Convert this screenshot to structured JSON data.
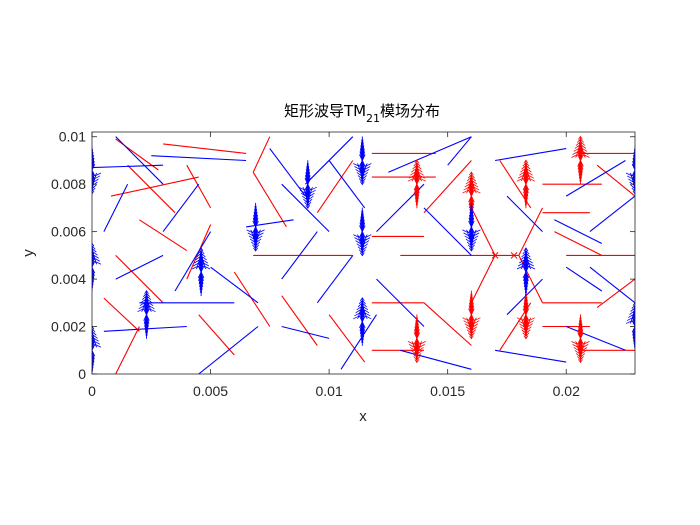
{
  "chart_data": {
    "type": "quiver",
    "title": "矩形波导TM",
    "title_subscript": "21",
    "title_suffix": "模场分布",
    "xlabel": "x",
    "ylabel": "y",
    "xlim": [
      0,
      0.0229
    ],
    "ylim": [
      0,
      0.0102
    ],
    "xticks": [
      {
        "value": 0,
        "label": "0"
      },
      {
        "value": 0.005,
        "label": "0.005"
      },
      {
        "value": 0.01,
        "label": "0.01"
      },
      {
        "value": 0.015,
        "label": "0.015"
      },
      {
        "value": 0.02,
        "label": "0.02"
      }
    ],
    "yticks": [
      {
        "value": 0,
        "label": "0"
      },
      {
        "value": 0.002,
        "label": "0.002"
      },
      {
        "value": 0.004,
        "label": "0.004"
      },
      {
        "value": 0.006,
        "label": "0.006"
      },
      {
        "value": 0.008,
        "label": "0.008"
      },
      {
        "value": 0.01,
        "label": "0.01"
      }
    ],
    "grid": false,
    "series": [
      {
        "color": "#ff0000",
        "segments": [
          [
            0.001,
            0.0099,
            0.0028,
            0.0086
          ],
          [
            0.0015,
            0.0088,
            0.0035,
            0.0068
          ],
          [
            0.0008,
            0.0075,
            0.0045,
            0.0083
          ],
          [
            0.003,
            0.0097,
            0.0065,
            0.0093
          ],
          [
            0.004,
            0.0088,
            0.005,
            0.007
          ],
          [
            0.002,
            0.0065,
            0.004,
            0.0052
          ],
          [
            0.005,
            0.0063,
            0.004,
            0.004
          ],
          [
            0.001,
            0.005,
            0.003,
            0.003
          ],
          [
            0.0005,
            0.0032,
            0.002,
            0.0018
          ],
          [
            0.002,
            0.002,
            0.001,
            0.0
          ],
          [
            0.0045,
            0.0025,
            0.006,
            0.0008
          ],
          [
            0.006,
            0.0043,
            0.0075,
            0.002
          ],
          [
            0.0068,
            0.005,
            0.011,
            0.005
          ],
          [
            0.0075,
            0.01,
            0.0068,
            0.0085
          ],
          [
            0.0068,
            0.0085,
            0.0082,
            0.0062
          ],
          [
            0.008,
            0.0033,
            0.0095,
            0.0012
          ],
          [
            0.01,
            0.0025,
            0.0115,
            0.0005
          ],
          [
            0.0095,
            0.0068,
            0.011,
            0.009
          ],
          [
            0.0118,
            0.0093,
            0.0145,
            0.0093
          ],
          [
            0.0118,
            0.0083,
            0.0145,
            0.0083
          ],
          [
            0.0118,
            0.0058,
            0.014,
            0.0058
          ],
          [
            0.0118,
            0.003,
            0.014,
            0.003
          ],
          [
            0.0118,
            0.001,
            0.014,
            0.001
          ],
          [
            0.013,
            0.005,
            0.018,
            0.005
          ],
          [
            0.014,
            0.0068,
            0.016,
            0.009
          ],
          [
            0.014,
            0.003,
            0.016,
            0.0012
          ],
          [
            0.016,
            0.003,
            0.017,
            0.005
          ],
          [
            0.016,
            0.007,
            0.017,
            0.005
          ],
          [
            0.018,
            0.005,
            0.019,
            0.003
          ],
          [
            0.018,
            0.005,
            0.019,
            0.007
          ],
          [
            0.0172,
            0.009,
            0.0185,
            0.007
          ],
          [
            0.0172,
            0.001,
            0.0185,
            0.003
          ],
          [
            0.019,
            0.008,
            0.0215,
            0.008
          ],
          [
            0.019,
            0.0068,
            0.021,
            0.0068
          ],
          [
            0.019,
            0.003,
            0.0215,
            0.003
          ],
          [
            0.019,
            0.002,
            0.021,
            0.002
          ],
          [
            0.0205,
            0.0093,
            0.0229,
            0.0093
          ],
          [
            0.02,
            0.005,
            0.0229,
            0.005
          ],
          [
            0.0205,
            0.001,
            0.0229,
            0.001
          ],
          [
            0.0213,
            0.0088,
            0.0229,
            0.0075
          ],
          [
            0.0213,
            0.0028,
            0.0229,
            0.004
          ],
          [
            0.0195,
            0.006,
            0.0215,
            0.005
          ]
        ]
      },
      {
        "color": "#0000ff",
        "segments": [
          [
            0.0,
            0.0087,
            0.003,
            0.0088
          ],
          [
            0.001,
            0.01,
            0.003,
            0.008
          ],
          [
            0.0015,
            0.008,
            0.0005,
            0.006
          ],
          [
            0.0025,
            0.0092,
            0.0065,
            0.009
          ],
          [
            0.003,
            0.006,
            0.0045,
            0.008
          ],
          [
            0.0035,
            0.0035,
            0.005,
            0.006
          ],
          [
            0.002,
            0.003,
            0.006,
            0.003
          ],
          [
            0.0005,
            0.0018,
            0.004,
            0.002
          ],
          [
            0.001,
            0.004,
            0.003,
            0.005
          ],
          [
            0.0045,
            0.0,
            0.007,
            0.002
          ],
          [
            0.005,
            0.0045,
            0.007,
            0.003
          ],
          [
            0.0065,
            0.0062,
            0.0085,
            0.0065
          ],
          [
            0.0075,
            0.0095,
            0.009,
            0.0075
          ],
          [
            0.008,
            0.008,
            0.01,
            0.006
          ],
          [
            0.008,
            0.004,
            0.0095,
            0.006
          ],
          [
            0.008,
            0.002,
            0.01,
            0.0015
          ],
          [
            0.0095,
            0.003,
            0.011,
            0.005
          ],
          [
            0.01,
            0.009,
            0.0115,
            0.007
          ],
          [
            0.0105,
            0.0002,
            0.012,
            0.0025
          ],
          [
            0.012,
            0.006,
            0.014,
            0.008
          ],
          [
            0.012,
            0.004,
            0.014,
            0.002
          ],
          [
            0.0125,
            0.0085,
            0.016,
            0.01
          ],
          [
            0.013,
            0.001,
            0.016,
            0.0002
          ],
          [
            0.014,
            0.007,
            0.016,
            0.005
          ],
          [
            0.015,
            0.0088,
            0.016,
            0.01
          ],
          [
            0.017,
            0.009,
            0.02,
            0.0095
          ],
          [
            0.017,
            0.001,
            0.02,
            0.0005
          ],
          [
            0.0175,
            0.0075,
            0.019,
            0.006
          ],
          [
            0.0175,
            0.0025,
            0.019,
            0.004
          ],
          [
            0.0195,
            0.0065,
            0.0215,
            0.0055
          ],
          [
            0.02,
            0.0045,
            0.0215,
            0.0035
          ],
          [
            0.02,
            0.0075,
            0.0225,
            0.009
          ],
          [
            0.02,
            0.002,
            0.0225,
            0.001
          ],
          [
            0.021,
            0.0045,
            0.0229,
            0.003
          ],
          [
            0.021,
            0.006,
            0.0229,
            0.0075
          ],
          [
            0.011,
            0.01,
            0.009,
            0.008
          ]
        ]
      }
    ],
    "clusters": [
      {
        "x": 0.0,
        "y": 0.001,
        "color": "#0000ff",
        "dir": "up"
      },
      {
        "x": 0.0,
        "y": 0.0045,
        "color": "#0000ff",
        "dir": "up"
      },
      {
        "x": 0.0,
        "y": 0.0086,
        "color": "#0000ff",
        "dir": "down"
      },
      {
        "x": 0.0023,
        "y": 0.0025,
        "color": "#0000ff",
        "dir": "up"
      },
      {
        "x": 0.0046,
        "y": 0.0043,
        "color": "#0000ff",
        "dir": "up"
      },
      {
        "x": 0.0069,
        "y": 0.0062,
        "color": "#0000ff",
        "dir": "down"
      },
      {
        "x": 0.0091,
        "y": 0.008,
        "color": "#0000ff",
        "dir": "down"
      },
      {
        "x": 0.0114,
        "y": 0.0022,
        "color": "#0000ff",
        "dir": "up"
      },
      {
        "x": 0.0114,
        "y": 0.006,
        "color": "#0000ff",
        "dir": "down"
      },
      {
        "x": 0.0114,
        "y": 0.009,
        "color": "#0000ff",
        "dir": "down"
      },
      {
        "x": 0.0137,
        "y": 0.008,
        "color": "#ff0000",
        "dir": "up"
      },
      {
        "x": 0.0137,
        "y": 0.0015,
        "color": "#ff0000",
        "dir": "down"
      },
      {
        "x": 0.016,
        "y": 0.0075,
        "color": "#ff0000",
        "dir": "up"
      },
      {
        "x": 0.016,
        "y": 0.0025,
        "color": "#ff0000",
        "dir": "down"
      },
      {
        "x": 0.016,
        "y": 0.0062,
        "color": "#0000ff",
        "dir": "down"
      },
      {
        "x": 0.0183,
        "y": 0.008,
        "color": "#ff0000",
        "dir": "up"
      },
      {
        "x": 0.0183,
        "y": 0.0025,
        "color": "#ff0000",
        "dir": "down"
      },
      {
        "x": 0.0183,
        "y": 0.0043,
        "color": "#0000ff",
        "dir": "up"
      },
      {
        "x": 0.0206,
        "y": 0.009,
        "color": "#ff0000",
        "dir": "up"
      },
      {
        "x": 0.0206,
        "y": 0.0015,
        "color": "#ff0000",
        "dir": "down"
      },
      {
        "x": 0.0229,
        "y": 0.0086,
        "color": "#0000ff",
        "dir": "down"
      },
      {
        "x": 0.0229,
        "y": 0.002,
        "color": "#0000ff",
        "dir": "up"
      }
    ],
    "nodes": [
      {
        "x": 0.017,
        "y": 0.005,
        "color": "#ff0000"
      },
      {
        "x": 0.0178,
        "y": 0.005,
        "color": "#ff0000"
      }
    ]
  }
}
